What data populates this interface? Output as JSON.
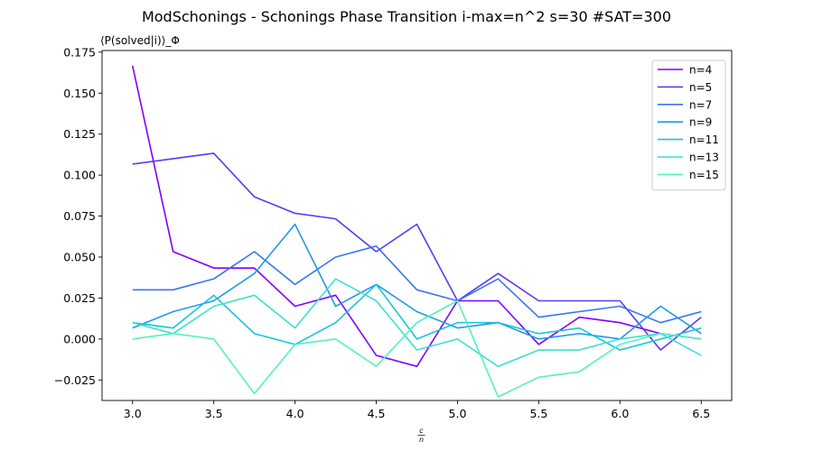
{
  "chart_data": {
    "type": "line",
    "title": "ModSchonings - Schonings Phase Transition  i-max=n^2 s=30 #SAT=300",
    "ylabel": "⟨P(solved|i)⟩_Φ",
    "xlabel": "c/n",
    "xlim": [
      2.8125,
      6.6875
    ],
    "ylim": [
      -0.0375,
      0.176
    ],
    "x": [
      3.0,
      3.25,
      3.5,
      3.75,
      4.0,
      4.25,
      4.5,
      4.75,
      5.0,
      5.25,
      5.5,
      5.75,
      6.0,
      6.25,
      6.5
    ],
    "x_ticks": [
      3.0,
      3.5,
      4.0,
      4.5,
      5.0,
      5.5,
      6.0,
      6.5
    ],
    "x_tick_labels": [
      "3.0",
      "3.5",
      "4.0",
      "4.5",
      "5.0",
      "5.5",
      "6.0",
      "6.5"
    ],
    "y_ticks": [
      -0.025,
      0.0,
      0.025,
      0.05,
      0.075,
      0.1,
      0.125,
      0.15,
      0.175
    ],
    "y_tick_labels": [
      "−0.025",
      "0.000",
      "0.025",
      "0.050",
      "0.075",
      "0.100",
      "0.125",
      "0.150",
      "0.175"
    ],
    "grid": false,
    "legend_position": "top-right",
    "series": [
      {
        "name": "n=4",
        "color": "#8000ff",
        "values": [
          0.1667,
          0.0533,
          0.0433,
          0.0433,
          0.02,
          0.0267,
          -0.01,
          -0.0167,
          0.0233,
          0.0233,
          -0.0033,
          0.0133,
          0.01,
          0.0033,
          0.0
        ]
      },
      {
        "name": "n=5",
        "color": "#5a3af7",
        "values": [
          0.1067,
          0.11,
          0.1133,
          0.0867,
          0.0767,
          0.0733,
          0.0533,
          0.07,
          0.0233,
          0.04,
          0.0233,
          0.0233,
          0.0233,
          -0.0067,
          0.0133
        ]
      },
      {
        "name": "n=7",
        "color": "#3b74f0",
        "values": [
          0.03,
          0.03,
          0.0367,
          0.0533,
          0.0333,
          0.05,
          0.0567,
          0.03,
          0.0233,
          0.0367,
          0.0133,
          0.0167,
          0.02,
          0.01,
          0.0167
        ]
      },
      {
        "name": "n=9",
        "color": "#1e9be6",
        "values": [
          0.0067,
          0.0167,
          0.0233,
          0.04,
          0.07,
          0.02,
          0.0333,
          0.0167,
          0.0067,
          0.01,
          0.0,
          0.0033,
          0.0,
          0.02,
          0.0033
        ]
      },
      {
        "name": "n=11",
        "color": "#17c4db",
        "values": [
          0.01,
          0.0067,
          0.0267,
          0.0033,
          -0.0033,
          0.01,
          0.0333,
          0.0,
          0.01,
          0.01,
          0.0033,
          0.0067,
          -0.0067,
          0.0,
          0.0067
        ]
      },
      {
        "name": "n=13",
        "color": "#3ce0cf",
        "values": [
          0.01,
          0.0033,
          0.02,
          0.0267,
          0.0067,
          0.0367,
          0.0233,
          -0.0067,
          0.0,
          -0.0167,
          -0.0067,
          -0.0067,
          0.0,
          0.0033,
          -0.01
        ]
      },
      {
        "name": "n=15",
        "color": "#55f0c0",
        "values": [
          0.0,
          0.0033,
          0.0,
          -0.0333,
          -0.0033,
          0.0,
          -0.0167,
          0.01,
          0.0233,
          -0.0353,
          -0.0233,
          -0.02,
          -0.0033,
          0.0033,
          0.0
        ]
      }
    ]
  }
}
